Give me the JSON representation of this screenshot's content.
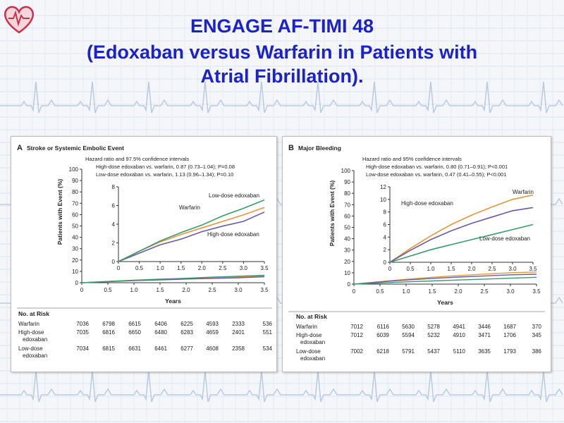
{
  "slide": {
    "title_lines": [
      "ENGAGE AF-TIMI 48",
      "(Edoxaban versus Warfarin in Patients with",
      "Atrial Fibrillation)."
    ]
  },
  "colors": {
    "title": "#1a22c8",
    "warfarin": "#e5963c",
    "high_dose": "#6b5aa8",
    "low_dose": "#3b9a6a",
    "background_grid": "#c8d6e6"
  },
  "chart_data": [
    {
      "type": "line",
      "panel_letter": "A",
      "title": "Stroke or Systemic Embolic Event",
      "annotation_lines": [
        "Hazard ratio and 97.5% confidence intervals",
        "High-dose edoxaban vs. warfarin, 0.87 (0.73–1.04); P=0.08",
        "Low-dose edoxaban vs. warfarin, 1.13 (0.96–1.34); P=0.10"
      ],
      "xlabel": "Years",
      "ylabel": "Patients with Event (%)",
      "xlim": [
        0,
        3.5
      ],
      "ylim": [
        0,
        100
      ],
      "xticks": [
        "0",
        "0.5",
        "1.0",
        "1.5",
        "2.0",
        "2.5",
        "3.0",
        "3.5"
      ],
      "yticks": [
        "0",
        "10",
        "20",
        "30",
        "40",
        "50",
        "60",
        "70",
        "80",
        "90",
        "100"
      ],
      "inset": {
        "xlim": [
          0,
          3.5
        ],
        "ylim": [
          0,
          8
        ],
        "xticks": [
          "0",
          "0.5",
          "1.0",
          "1.5",
          "2.0",
          "2.5",
          "3.0",
          "3.5"
        ],
        "yticks": [
          "0",
          "2",
          "4",
          "6",
          "8"
        ]
      },
      "series": [
        {
          "name": "Warfarin",
          "x": [
            0,
            0.5,
            1.0,
            1.5,
            2.0,
            2.5,
            3.0,
            3.5
          ],
          "y": [
            0,
            1.1,
            2.1,
            2.9,
            3.6,
            4.3,
            5.0,
            5.8
          ]
        },
        {
          "name": "High-dose edoxaban",
          "x": [
            0,
            0.5,
            1.0,
            1.5,
            2.0,
            2.5,
            3.0,
            3.5
          ],
          "y": [
            0,
            0.9,
            1.8,
            2.4,
            3.2,
            3.8,
            4.3,
            5.3
          ]
        },
        {
          "name": "Low-dose edoxaban",
          "x": [
            0,
            0.5,
            1.0,
            1.5,
            2.0,
            2.5,
            3.0,
            3.5
          ],
          "y": [
            0,
            1.1,
            2.2,
            3.1,
            3.9,
            4.9,
            5.7,
            6.6
          ]
        }
      ],
      "risk_table": {
        "header": "No. at Risk",
        "rows": [
          {
            "label_lines": [
              "Warfarin"
            ],
            "values": [
              "7036",
              "6798",
              "6615",
              "6406",
              "6225",
              "4593",
              "2333",
              "536"
            ]
          },
          {
            "label_lines": [
              "High-dose",
              "edoxaban"
            ],
            "values": [
              "7035",
              "6816",
              "6650",
              "6480",
              "6283",
              "4659",
              "2401",
              "551"
            ]
          },
          {
            "label_lines": [
              "Low-dose",
              "edoxaban"
            ],
            "values": [
              "7034",
              "6815",
              "6631",
              "6461",
              "6277",
              "4608",
              "2358",
              "534"
            ]
          }
        ]
      }
    },
    {
      "type": "line",
      "panel_letter": "B",
      "title": "Major Bleeding",
      "annotation_lines": [
        "Hazard ratio and 95% confidence intervals",
        "High-dose edoxaban vs. warfarin, 0.80 (0.71–0.91); P<0.001",
        "Low-dose edoxaban vs. warfarin, 0.47 (0.41–0.55); P<0.001"
      ],
      "xlabel": "Years",
      "ylabel": "Patients with Event (%)",
      "xlim": [
        0,
        3.5
      ],
      "ylim": [
        0,
        100
      ],
      "xticks": [
        "0",
        "0.5",
        "1.0",
        "1.5",
        "2.0",
        "2.5",
        "3.0",
        "3.5"
      ],
      "yticks": [
        "0",
        "10",
        "20",
        "30",
        "40",
        "50",
        "60",
        "70",
        "80",
        "90",
        "100"
      ],
      "inset": {
        "xlim": [
          0,
          3.5
        ],
        "ylim": [
          0,
          12
        ],
        "xticks": [
          "0",
          "0.5",
          "1.0",
          "1.5",
          "2.0",
          "2.5",
          "3.0",
          "3.5"
        ],
        "yticks": [
          "0",
          "2",
          "4",
          "6",
          "8",
          "10",
          "12"
        ]
      },
      "series": [
        {
          "name": "Warfarin",
          "x": [
            0,
            0.5,
            1.0,
            1.5,
            2.0,
            2.5,
            3.0,
            3.5
          ],
          "y": [
            0,
            2.2,
            4.2,
            6.0,
            7.5,
            8.8,
            10.0,
            10.7
          ]
        },
        {
          "name": "High-dose edoxaban",
          "x": [
            0,
            0.5,
            1.0,
            1.5,
            2.0,
            2.5,
            3.0,
            3.5
          ],
          "y": [
            0,
            1.9,
            3.6,
            5.0,
            6.2,
            7.2,
            8.2,
            8.7
          ]
        },
        {
          "name": "Low-dose edoxaban",
          "x": [
            0,
            0.5,
            1.0,
            1.5,
            2.0,
            2.5,
            3.0,
            3.5
          ],
          "y": [
            0,
            1.0,
            2.0,
            2.8,
            3.6,
            4.4,
            5.2,
            6.0
          ]
        }
      ],
      "risk_table": {
        "header": "No. at Risk",
        "rows": [
          {
            "label_lines": [
              "Warfarin"
            ],
            "values": [
              "7012",
              "6116",
              "5630",
              "5278",
              "4941",
              "3446",
              "1687",
              "370"
            ]
          },
          {
            "label_lines": [
              "High-dose",
              "edoxaban"
            ],
            "values": [
              "7012",
              "6039",
              "5594",
              "5232",
              "4910",
              "3471",
              "1706",
              "345"
            ]
          },
          {
            "label_lines": [
              "Low-dose",
              "edoxaban"
            ],
            "values": [
              "7002",
              "6218",
              "5791",
              "5437",
              "5110",
              "3635",
              "1793",
              "386"
            ]
          }
        ]
      }
    }
  ]
}
